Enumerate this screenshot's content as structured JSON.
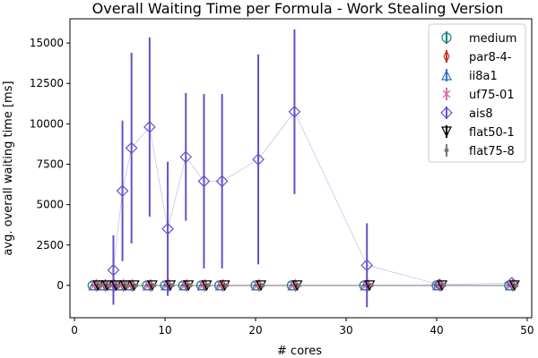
{
  "chart_data": {
    "type": "scatter",
    "title": "Overall Waiting Time per Formula - Work Stealing Version",
    "xlabel": "# cores",
    "ylabel": "avg. overall waiting time [ms]",
    "xlim": [
      -0.5,
      50.5
    ],
    "ylim": [
      -2000,
      16500
    ],
    "xticks": [
      0,
      10,
      20,
      30,
      40,
      50
    ],
    "yticks": [
      0,
      2500,
      5000,
      7500,
      10000,
      12500,
      15000
    ],
    "grid": false,
    "legend_position": "top-right",
    "series": [
      {
        "name": "medium",
        "marker": "circle",
        "color": "#1b7f7f",
        "x": [
          2,
          3,
          4,
          5,
          6,
          8,
          10,
          12,
          14,
          16,
          20,
          24,
          32,
          40,
          48
        ],
        "y": [
          0,
          0,
          0,
          0,
          0,
          0,
          0,
          0,
          0,
          0,
          0,
          0,
          0,
          0,
          0
        ],
        "err": [
          60,
          60,
          60,
          60,
          60,
          60,
          60,
          60,
          60,
          60,
          60,
          60,
          60,
          60,
          60
        ]
      },
      {
        "name": "par8-4-",
        "marker": "thin_diamond",
        "color": "#c0392b",
        "x": [
          2.4,
          3.4,
          4.4,
          5.4,
          6.4,
          8.4,
          10.4,
          12.4,
          14.4,
          16.4,
          20.4,
          24.4,
          32.4,
          40.4,
          48.4
        ],
        "y": [
          0,
          0,
          0,
          0,
          0,
          0,
          0,
          0,
          0,
          0,
          0,
          0,
          0,
          0,
          0
        ],
        "err": [
          80,
          80,
          80,
          80,
          80,
          80,
          80,
          80,
          80,
          80,
          80,
          80,
          80,
          80,
          80
        ]
      },
      {
        "name": "ii8a1",
        "marker": "triangle-up",
        "color": "#3a6fc4",
        "x": [
          2.1,
          3.1,
          4.1,
          5.1,
          6.1,
          8.1,
          10.1,
          12.1,
          14.1,
          16.1,
          20.1,
          24.1,
          32.1,
          40.1,
          48.1
        ],
        "y": [
          0,
          0,
          0,
          0,
          0,
          0,
          0,
          0,
          0,
          0,
          0,
          0,
          0,
          0,
          0
        ],
        "err": [
          80,
          80,
          80,
          80,
          80,
          80,
          80,
          80,
          80,
          80,
          80,
          80,
          80,
          80,
          80
        ]
      },
      {
        "name": "uf75-01",
        "marker": "x",
        "color": "#d66fa8",
        "x": [
          2.2,
          3.2,
          4.2,
          5.2,
          6.2,
          8.2,
          10.2,
          12.2,
          14.2,
          16.2,
          20.2,
          24.2,
          32.2,
          40.2,
          48.2
        ],
        "y": [
          0,
          0,
          0,
          0,
          0,
          0,
          0,
          0,
          0,
          0,
          0,
          0,
          0,
          0,
          0
        ],
        "err": [
          80,
          80,
          80,
          80,
          80,
          80,
          80,
          80,
          80,
          80,
          80,
          80,
          80,
          80,
          80
        ]
      },
      {
        "name": "ais8",
        "marker": "diamond",
        "color": "#6a4fc8",
        "x": [
          4.3,
          5.3,
          6.3,
          8.3,
          10.3,
          12.3,
          14.3,
          16.3,
          20.3,
          24.3,
          32.3,
          40.3,
          48.3
        ],
        "y": [
          950,
          5850,
          8500,
          9800,
          3500,
          7950,
          6450,
          6450,
          7800,
          10750,
          1250,
          50,
          150
        ],
        "err": [
          2150,
          4350,
          5900,
          5550,
          4150,
          3950,
          5400,
          5400,
          6500,
          5100,
          2600,
          60,
          60
        ]
      },
      {
        "name": "flat50-1",
        "marker": "triangle-down",
        "color": "#000000",
        "x": [
          2.6,
          3.6,
          4.6,
          5.6,
          6.6,
          8.6,
          10.6,
          12.6,
          14.6,
          16.6,
          20.6,
          24.6,
          32.6,
          40.6,
          48.6
        ],
        "y": [
          0,
          0,
          0,
          0,
          0,
          0,
          0,
          0,
          0,
          0,
          0,
          0,
          0,
          0,
          0
        ],
        "err": [
          80,
          80,
          80,
          80,
          80,
          80,
          80,
          80,
          80,
          80,
          80,
          80,
          80,
          80,
          80
        ]
      },
      {
        "name": "flat75-8",
        "marker": "point",
        "color": "#777777",
        "x": [
          2.8,
          3.8,
          4.8,
          5.8,
          6.8,
          8.8,
          10.8,
          12.8,
          14.8,
          16.8,
          20.8,
          24.8,
          32.8,
          40.8,
          48.8
        ],
        "y": [
          0,
          0,
          0,
          0,
          0,
          0,
          0,
          0,
          0,
          0,
          0,
          0,
          0,
          0,
          0
        ],
        "err": [
          80,
          80,
          80,
          80,
          80,
          80,
          80,
          80,
          80,
          80,
          80,
          80,
          80,
          80,
          80
        ]
      }
    ]
  }
}
